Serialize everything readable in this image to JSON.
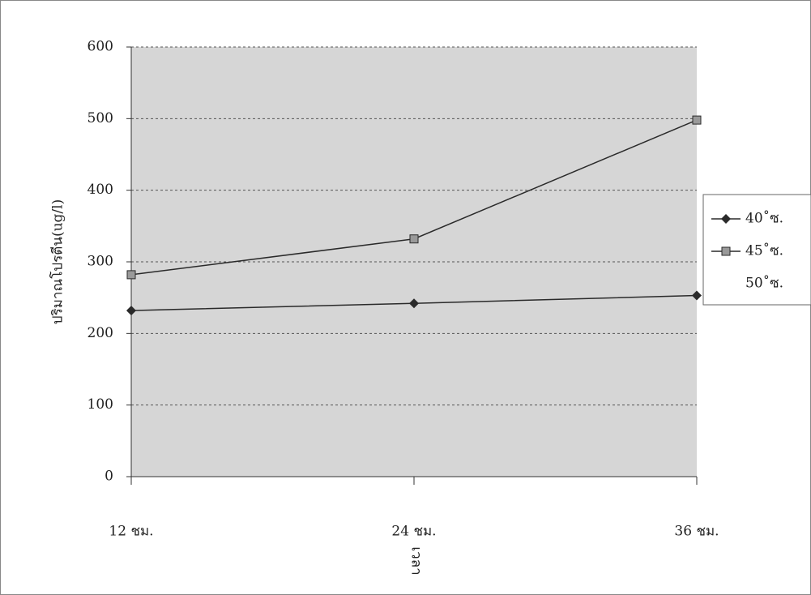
{
  "chart_data": {
    "type": "line",
    "y_label": "ปริมาณโปรตีน(ug/l)",
    "x_label": "เวลา",
    "categories": [
      "12 ชม.",
      "24 ชม.",
      "36 ชม."
    ],
    "series": [
      {
        "name": "40˚ซ.",
        "color": "#2a2a2a",
        "marker": "diamond",
        "values": [
          232,
          242,
          253
        ]
      },
      {
        "name": "45˚ซ.",
        "color": "#2a2a2a",
        "marker": "square",
        "values": [
          282,
          332,
          498
        ]
      },
      {
        "name": "50˚ซ.",
        "values": [
          null,
          null,
          null
        ]
      }
    ],
    "ylim": [
      0,
      600
    ],
    "yticks": [
      0,
      100,
      200,
      300,
      400,
      500,
      600
    ],
    "grid": true
  }
}
